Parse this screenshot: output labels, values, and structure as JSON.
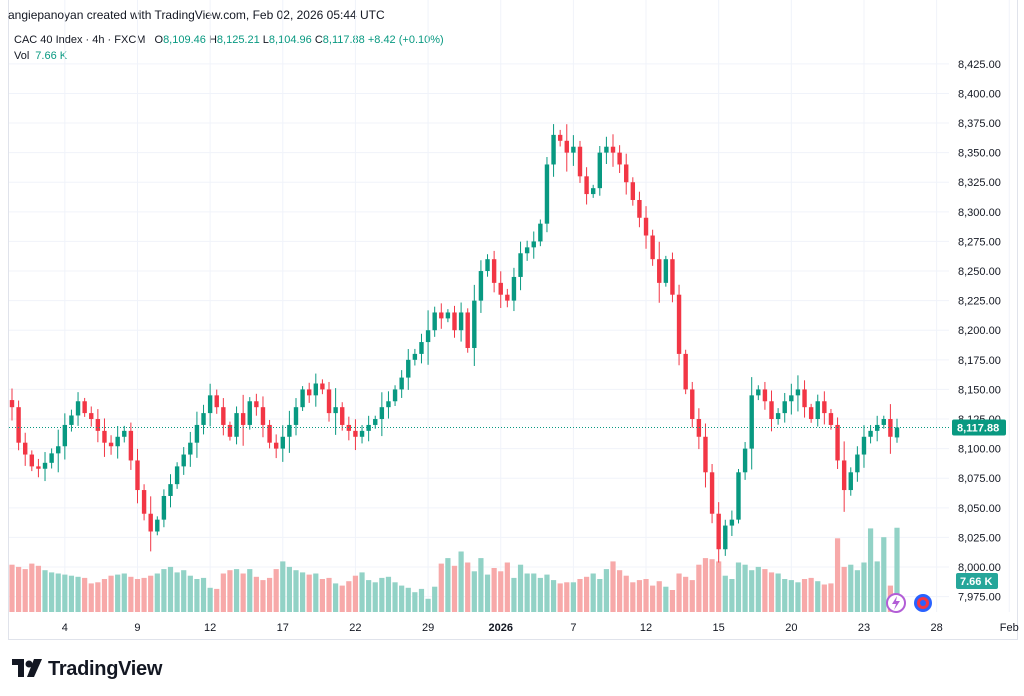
{
  "caption": "angiepanoyan created with TradingView.com, Feb 02, 2026 05:44 UTC",
  "legend": {
    "symbol": "CAC 40 Index · 4h · FXCM",
    "o_label": "O",
    "o_value": "8,109.46",
    "h_label": "H",
    "h_value": "8,125.21",
    "l_label": "L",
    "l_value": "8,104.96",
    "c_label": "C",
    "c_value": "8,117.88",
    "change": "+8.42 (+0.10%)",
    "vol_label": "Vol",
    "vol_value": "7.66 K"
  },
  "badges": {
    "price": "8,117.88",
    "volume": "7.66 K"
  },
  "brand": {
    "name": "TradingView"
  },
  "colors": {
    "up": "#089981",
    "down": "#f23645",
    "up_vol": "#92d2c6",
    "down_vol": "#f7a9a9",
    "grid": "#f0f3fa"
  },
  "chart_data": {
    "type": "candlestick",
    "title": "CAC 40 Index · 4h · FXCM",
    "ylim": [
      7962,
      8435
    ],
    "y_ticks": [
      "8,425.00",
      "8,400.00",
      "8,375.00",
      "8,350.00",
      "8,325.00",
      "8,300.00",
      "8,275.00",
      "8,250.00",
      "8,225.00",
      "8,200.00",
      "8,175.00",
      "8,150.00",
      "8,125.00",
      "8,100.00",
      "8,075.00",
      "8,050.00",
      "8,025.00",
      "8,000.00",
      "7,975.00"
    ],
    "y_tick_values": [
      8425,
      8400,
      8375,
      8350,
      8325,
      8300,
      8275,
      8250,
      8225,
      8200,
      8175,
      8150,
      8125,
      8100,
      8075,
      8050,
      8025,
      8000,
      7975
    ],
    "x_ticks": [
      "4",
      "9",
      "12",
      "17",
      "22",
      "29",
      "2026",
      "7",
      "12",
      "15",
      "20",
      "23",
      "28",
      "Feb"
    ],
    "x_tick_bar_index": [
      8,
      19,
      30,
      41,
      52,
      63,
      74,
      85,
      96,
      107,
      118,
      129,
      140,
      151
    ],
    "last_price": 8117.88,
    "closes": [
      8135,
      8105,
      8095,
      8085,
      8083,
      8088,
      8096,
      8102,
      8120,
      8128,
      8140,
      8130,
      8125,
      8115,
      8105,
      8102,
      8110,
      8115,
      8090,
      8065,
      8045,
      8030,
      8040,
      8060,
      8070,
      8085,
      8095,
      8105,
      8120,
      8130,
      8145,
      8135,
      8120,
      8110,
      8130,
      8120,
      8140,
      8135,
      8120,
      8105,
      8100,
      8110,
      8120,
      8135,
      8150,
      8145,
      8155,
      8150,
      8130,
      8135,
      8120,
      8115,
      8110,
      8115,
      8120,
      8125,
      8135,
      8140,
      8150,
      8160,
      8175,
      8180,
      8190,
      8200,
      8215,
      8210,
      8215,
      8200,
      8215,
      8185,
      8225,
      8250,
      8260,
      8240,
      8230,
      8225,
      8245,
      8265,
      8270,
      8275,
      8290,
      8340,
      8365,
      8360,
      8350,
      8355,
      8330,
      8315,
      8320,
      8350,
      8355,
      8350,
      8340,
      8325,
      8310,
      8295,
      8280,
      8260,
      8240,
      8260,
      8230,
      8180,
      8150,
      8125,
      8110,
      8080,
      8045,
      8015,
      8035,
      8040,
      8080,
      8100,
      8145,
      8150,
      8140,
      8125,
      8130,
      8140,
      8145,
      8150,
      8135,
      8125,
      8140,
      8130,
      8120,
      8090,
      8065,
      8080,
      8095,
      8110,
      8115,
      8120,
      8125,
      8110,
      8117.88
    ],
    "volumes": [
      4.3,
      4.1,
      3.9,
      4.4,
      4.2,
      3.8,
      3.6,
      3.5,
      3.4,
      3.3,
      3.2,
      3.1,
      2.6,
      2.7,
      3.0,
      3.3,
      3.4,
      3.5,
      3.2,
      3.0,
      3.1,
      3.3,
      3.5,
      3.9,
      4.1,
      3.6,
      3.8,
      3.3,
      3.0,
      3.1,
      2.2,
      2.1,
      3.5,
      3.8,
      3.9,
      3.5,
      3.9,
      3.2,
      2.9,
      3.1,
      3.9,
      4.6,
      4.1,
      3.8,
      3.6,
      3.4,
      3.5,
      3.0,
      3.1,
      2.6,
      2.4,
      2.8,
      3.3,
      3.6,
      2.9,
      2.7,
      3.1,
      3.2,
      2.7,
      2.4,
      2.2,
      1.8,
      2.1,
      1.2,
      2.3,
      4.4,
      4.9,
      4.2,
      5.5,
      4.5,
      3.7,
      4.9,
      3.4,
      4.0,
      3.7,
      4.5,
      3.1,
      4.3,
      3.5,
      3.5,
      3.1,
      3.4,
      2.9,
      2.6,
      2.7,
      2.7,
      3.0,
      3.2,
      3.5,
      3.0,
      3.9,
      4.6,
      3.8,
      3.3,
      2.7,
      2.9,
      3.0,
      2.4,
      2.8,
      2.3,
      2.0,
      3.5,
      3.2,
      2.9,
      4.3,
      4.9,
      4.8,
      4.6,
      3.3,
      3.0,
      4.5,
      4.3,
      3.8,
      4.1,
      3.9,
      3.6,
      3.5,
      3.0,
      2.9,
      2.7,
      3.0,
      3.1,
      2.8,
      2.5,
      2.6,
      6.7,
      4.1,
      4.3,
      3.8,
      4.5,
      7.6,
      4.6,
      6.8,
      2.4,
      7.66
    ]
  }
}
